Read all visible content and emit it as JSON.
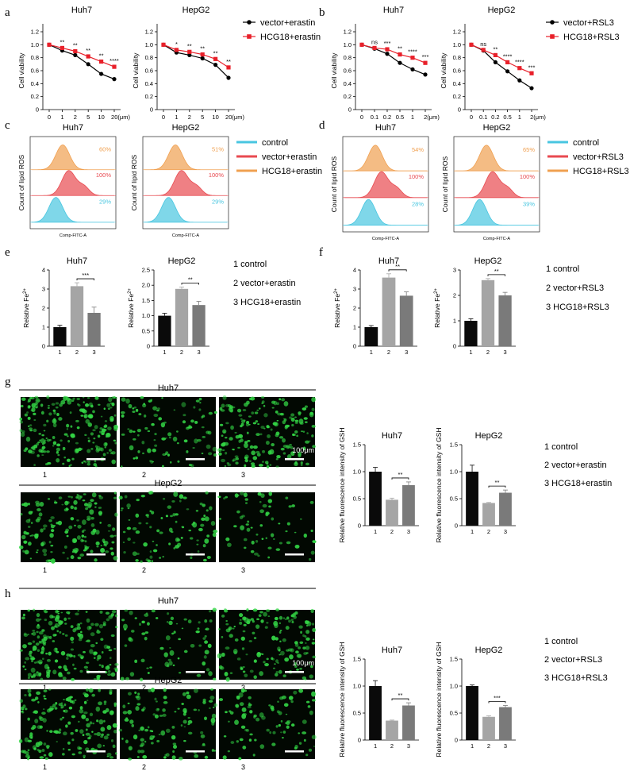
{
  "panel_letters": [
    "a",
    "b",
    "c",
    "d",
    "e",
    "f",
    "g",
    "h"
  ],
  "colors": {
    "vector": "#000000",
    "hcg": "#e8202a",
    "control_ros": "#48c6e0",
    "vector_ros": "#e84a50",
    "hcg_ros": "#f0a050",
    "bar1": "#0a0a0a",
    "bar2": "#a5a5a5",
    "bar3": "#7a7a7a",
    "micro_bg": "#020802",
    "cell": "#33d645"
  },
  "viability": {
    "ylabel": "Cell viability",
    "yticks": [
      "0",
      "0.2",
      "0.4",
      "0.6",
      "0.8",
      "1.0",
      "1.2"
    ],
    "erastin": {
      "legend": [
        "vector+erastin",
        "HCG18+erastin"
      ],
      "xticks": [
        "0",
        "1",
        "2",
        "5",
        "10",
        "20"
      ],
      "unit": "20(μm)",
      "Huh7": {
        "vector": [
          1.0,
          0.91,
          0.84,
          0.7,
          0.55,
          0.47
        ],
        "hcg": [
          1.0,
          0.95,
          0.9,
          0.82,
          0.74,
          0.66
        ],
        "sig": [
          "**",
          "**",
          "**",
          "**",
          "****"
        ]
      },
      "HepG2": {
        "vector": [
          1.0,
          0.88,
          0.84,
          0.79,
          0.69,
          0.49
        ],
        "hcg": [
          1.0,
          0.92,
          0.89,
          0.85,
          0.78,
          0.65
        ],
        "sig": [
          "*",
          "**",
          "**",
          "**",
          "**"
        ]
      }
    },
    "rsl3": {
      "legend": [
        "vector+RSL3",
        "HCG18+RSL3"
      ],
      "xticks": [
        "0",
        "0.1",
        "0.2",
        "0.5",
        "1",
        "2"
      ],
      "unit": "2(μm)",
      "Huh7": {
        "vector": [
          1.0,
          0.94,
          0.86,
          0.72,
          0.62,
          0.54
        ],
        "hcg": [
          1.0,
          0.95,
          0.93,
          0.85,
          0.8,
          0.72
        ],
        "sig": [
          "ns",
          "***",
          "**",
          "****",
          "***"
        ]
      },
      "HepG2": {
        "vector": [
          1.0,
          0.91,
          0.73,
          0.59,
          0.45,
          0.33
        ],
        "hcg": [
          1.0,
          0.92,
          0.84,
          0.73,
          0.64,
          0.56
        ],
        "sig": [
          "ns",
          "**",
          "****",
          "****",
          "***"
        ]
      }
    }
  },
  "ros": {
    "ylabel": "Count of lipid ROS",
    "xlabel": "Comp-FITC-A",
    "erastin": {
      "legend": [
        "control",
        "vector+erastin",
        "HCG18+erastin"
      ],
      "Huh7": [
        "60%",
        "100%",
        "29%"
      ],
      "HepG2": [
        "51%",
        "100%",
        "29%"
      ]
    },
    "rsl3": {
      "legend": [
        "control",
        "vector+RSL3",
        "HCG18+RSL3"
      ],
      "Huh7": [
        "54%",
        "100%",
        "28%"
      ],
      "HepG2": [
        "65%",
        "100%",
        "39%"
      ]
    }
  },
  "fe": {
    "ylabel": "Relative Fe",
    "ylabel_sup": "2+",
    "erastin": {
      "legend": [
        "1 control",
        "2 vector+erastin",
        "3 HCG18+erastin"
      ],
      "Huh7": {
        "values": [
          1.0,
          3.15,
          1.75
        ],
        "err": [
          0.1,
          0.18,
          0.3
        ],
        "yticks": [
          "0",
          "1",
          "2",
          "3",
          "4"
        ],
        "ymax": 4,
        "sig": "***"
      },
      "HepG2": {
        "values": [
          1.0,
          1.88,
          1.35
        ],
        "err": [
          0.08,
          0.06,
          0.12
        ],
        "yticks": [
          "0",
          "0.5",
          "1.0",
          "1.5",
          "2.0",
          "2.5"
        ],
        "ymax": 2.5,
        "sig": "**"
      }
    },
    "rsl3": {
      "legend": [
        "1 control",
        "2 vector+RSL3",
        "3 HCG18+RSL3"
      ],
      "Huh7": {
        "values": [
          1.0,
          3.6,
          2.65
        ],
        "err": [
          0.08,
          0.2,
          0.2
        ],
        "yticks": [
          "0",
          "1",
          "2",
          "3",
          "4"
        ],
        "ymax": 4,
        "sig": "**"
      },
      "HepG2": {
        "values": [
          1.0,
          2.6,
          2.0
        ],
        "err": [
          0.08,
          0.06,
          0.12
        ],
        "yticks": [
          "0",
          "1",
          "2",
          "3"
        ],
        "ymax": 3,
        "sig": "**"
      }
    }
  },
  "gsh": {
    "ylabel": "Relative fluorescence intensity of GSH",
    "yticks": [
      "0",
      "0.5",
      "1.0",
      "1.5"
    ],
    "erastin": {
      "legend": [
        "1 control",
        "2 vector+erastin",
        "3 HCG18+erastin"
      ],
      "Huh7": {
        "values": [
          1.0,
          0.48,
          0.75
        ],
        "err": [
          0.08,
          0.03,
          0.06
        ],
        "sig": "**"
      },
      "HepG2": {
        "values": [
          1.0,
          0.42,
          0.61
        ],
        "err": [
          0.12,
          0.01,
          0.05
        ],
        "sig": "**"
      }
    },
    "rsl3": {
      "legend": [
        "1 control",
        "2 vector+RSL3",
        "3 HCG18+RSL3"
      ],
      "Huh7": {
        "values": [
          1.0,
          0.36,
          0.64
        ],
        "err": [
          0.1,
          0.01,
          0.05
        ],
        "sig": "**"
      },
      "HepG2": {
        "values": [
          1.0,
          0.43,
          0.61
        ],
        "err": [
          0.02,
          0.02,
          0.03
        ],
        "sig": "***"
      }
    }
  },
  "micro": {
    "Huh7": "Huh7",
    "HepG2": "HepG2",
    "scale": "100μm",
    "labels": [
      "1",
      "2",
      "3"
    ],
    "erastin_density": {
      "Huh7": [
        1.0,
        0.45,
        0.85
      ],
      "HepG2": [
        0.75,
        0.45,
        0.3
      ]
    },
    "rsl3_density": {
      "Huh7": [
        1.0,
        0.35,
        0.7
      ],
      "HepG2": [
        0.8,
        0.5,
        0.4
      ]
    }
  },
  "bar_xticks": [
    "1",
    "2",
    "3"
  ],
  "titles": {
    "Huh7": "Huh7",
    "HepG2": "HepG2"
  }
}
